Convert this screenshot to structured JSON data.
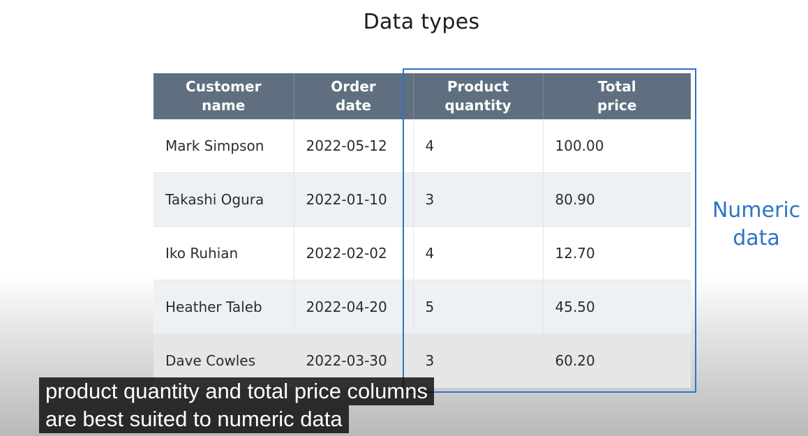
{
  "slide": {
    "title": "Data types"
  },
  "table": {
    "headers": [
      [
        "Customer",
        "name"
      ],
      [
        "Order",
        "date"
      ],
      [
        "Product",
        "quantity"
      ],
      [
        "Total",
        "price"
      ]
    ],
    "rows": [
      [
        "Mark Simpson",
        "2022-05-12",
        "4",
        "100.00"
      ],
      [
        "Takashi Ogura",
        "2022-01-10",
        "3",
        "80.90"
      ],
      [
        "Iko Ruhian",
        "2022-02-02",
        "4",
        "12.70"
      ],
      [
        "Heather Taleb",
        "2022-04-20",
        "5",
        "45.50"
      ],
      [
        "Dave Cowles",
        "2022-03-30",
        "3",
        "60.20"
      ]
    ]
  },
  "annotation": {
    "line1": "Numeric",
    "line2": "data",
    "color": "#2c74c8"
  },
  "caption": {
    "line1": "product quantity and total price columns",
    "line2": "are best suited to numeric data"
  }
}
